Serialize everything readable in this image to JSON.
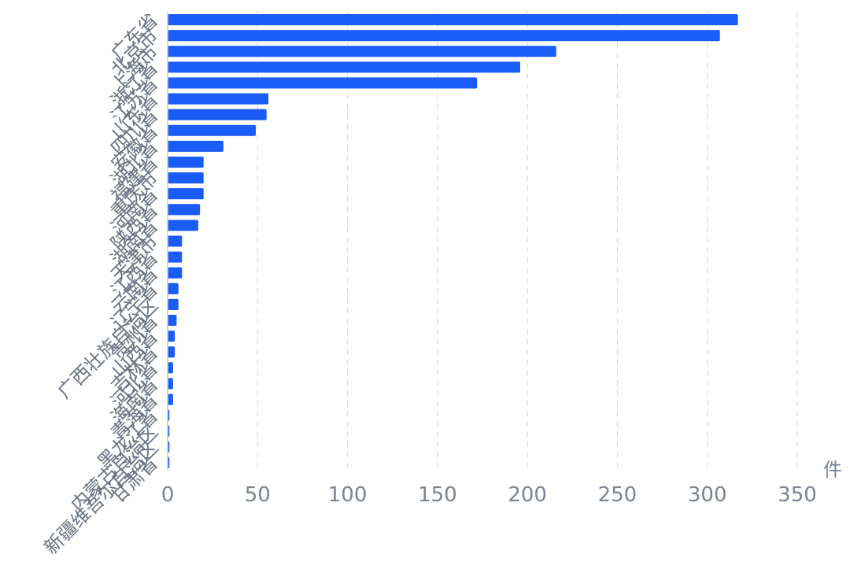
{
  "chart_data": {
    "type": "bar",
    "orientation": "horizontal",
    "x_unit": "件",
    "xlim": [
      0,
      350
    ],
    "x_ticks": [
      0,
      50,
      100,
      150,
      200,
      250,
      300,
      350
    ],
    "grid": true,
    "bar_color": "#1a5cf6",
    "categories": [
      "广东省",
      "北京市",
      "上海市",
      "浙江省",
      "江苏省",
      "山东省",
      "四川省",
      "安徽省",
      "湖北省",
      "福建省",
      "重庆市",
      "河南省",
      "陕西省",
      "湖南省",
      "天津市",
      "江西省",
      "云南省",
      "辽宁省",
      "广西壮族自治区",
      "贵州省",
      "山西省",
      "吉林省",
      "河北省",
      "海南省",
      "青海省",
      "黑龙江省",
      "内蒙古自治区",
      "新疆维吾尔自治区",
      "甘肃省"
    ],
    "values": [
      317,
      307,
      216,
      196,
      172,
      56,
      55,
      49,
      31,
      20,
      20,
      20,
      18,
      17,
      8,
      8,
      8,
      6,
      6,
      5,
      4,
      4,
      3,
      3,
      3,
      1,
      1,
      1,
      1
    ]
  }
}
